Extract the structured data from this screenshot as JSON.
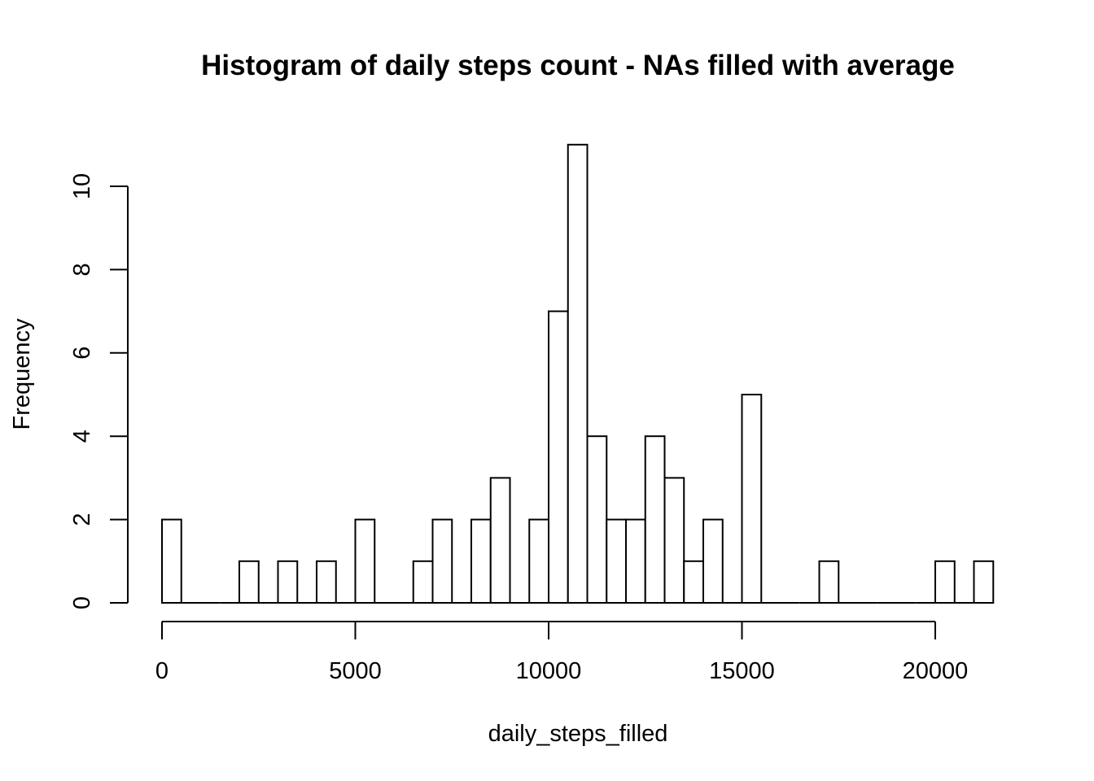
{
  "chart_data": {
    "type": "bar",
    "title": "Histogram of daily steps count - NAs filled with average",
    "xlabel": "daily_steps_filled",
    "ylabel": "Frequency",
    "bin_width": 500,
    "bin_start": 0,
    "frequencies": [
      2,
      0,
      0,
      0,
      1,
      0,
      1,
      0,
      1,
      0,
      2,
      0,
      0,
      1,
      2,
      0,
      2,
      3,
      0,
      2,
      7,
      11,
      4,
      2,
      2,
      4,
      3,
      1,
      2,
      0,
      5,
      0,
      0,
      0,
      1,
      0,
      0,
      0,
      0,
      0,
      1,
      0,
      1
    ],
    "xticks": [
      0,
      5000,
      10000,
      15000,
      20000
    ],
    "xtick_labels": [
      "0",
      "5000",
      "10000",
      "15000",
      "20000"
    ],
    "yticks": [
      0,
      2,
      4,
      6,
      8,
      10
    ],
    "ytick_labels": [
      "0",
      "2",
      "4",
      "6",
      "8",
      "10"
    ],
    "xlim": [
      0,
      21500
    ],
    "ylim": [
      0,
      11
    ],
    "grid": false,
    "fill_color": "#ffffff",
    "stroke_color": "#000000"
  }
}
